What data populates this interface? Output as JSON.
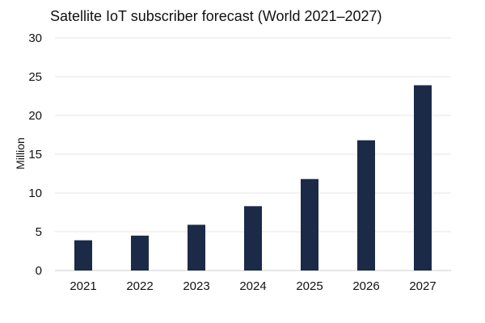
{
  "chart_data": {
    "type": "bar",
    "title": "Satellite IoT subscriber forecast (World 2021–2027)",
    "xlabel": "",
    "ylabel": "Million",
    "categories": [
      "2021",
      "2022",
      "2023",
      "2024",
      "2025",
      "2026",
      "2027"
    ],
    "values": [
      3.9,
      4.5,
      5.9,
      8.3,
      11.8,
      16.8,
      23.9
    ],
    "ylim": [
      0,
      30
    ],
    "yticks": [
      0,
      5,
      10,
      15,
      20,
      25,
      30
    ],
    "grid": true,
    "bar_color": "#1b2a47",
    "grid_color": "#e6e6e6"
  }
}
